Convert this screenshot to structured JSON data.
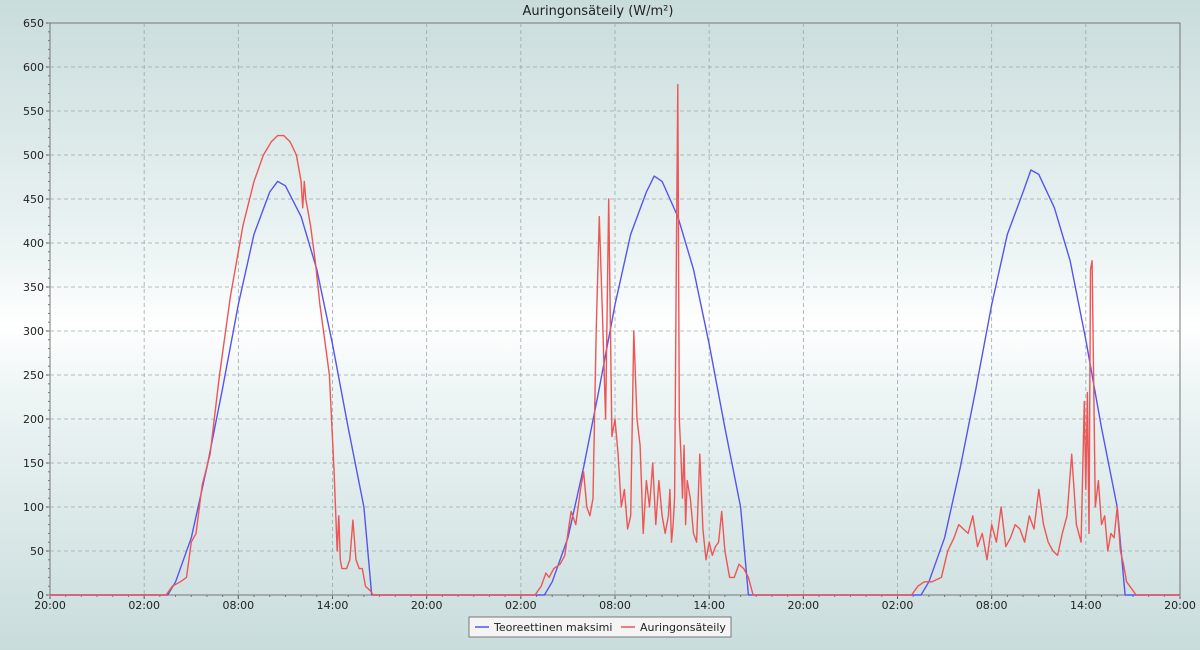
{
  "chart_data": {
    "type": "line",
    "title": "Auringonsäteily (W/m²)",
    "ylim": [
      0,
      650
    ],
    "y_ticks": [
      0,
      50,
      100,
      150,
      200,
      250,
      300,
      350,
      400,
      450,
      500,
      550,
      600,
      650
    ],
    "x_range_hours": [
      0,
      72
    ],
    "x_ticks": [
      {
        "h": 0,
        "label": "20:00"
      },
      {
        "h": 6,
        "label": "02:00"
      },
      {
        "h": 12,
        "label": "08:00"
      },
      {
        "h": 18,
        "label": "14:00"
      },
      {
        "h": 24,
        "label": "20:00"
      },
      {
        "h": 30,
        "label": "02:00"
      },
      {
        "h": 36,
        "label": "08:00"
      },
      {
        "h": 42,
        "label": "14:00"
      },
      {
        "h": 48,
        "label": "20:00"
      },
      {
        "h": 54,
        "label": "02:00"
      },
      {
        "h": 60,
        "label": "08:00"
      },
      {
        "h": 66,
        "label": "14:00"
      },
      {
        "h": 72,
        "label": "20:00"
      }
    ],
    "grid": true,
    "legend_position": "bottom-center",
    "series": [
      {
        "name": "Teoreettinen maksimi",
        "color": "#5555ee",
        "x": [
          0,
          7.5,
          8,
          9,
          10,
          11,
          12,
          13,
          14,
          14.5,
          15,
          16,
          17,
          18,
          19,
          20,
          20.5,
          31.5,
          32,
          33,
          34,
          35,
          36,
          37,
          38,
          38.5,
          39,
          40,
          41,
          42,
          43,
          44,
          44.5,
          55.5,
          56,
          57,
          58,
          59,
          60,
          61,
          62,
          62.5,
          63,
          64,
          65,
          66,
          67,
          68,
          68.5,
          72
        ],
        "y": [
          0,
          0,
          15,
          65,
          145,
          235,
          330,
          410,
          458,
          470,
          465,
          430,
          370,
          285,
          190,
          100,
          0,
          0,
          15,
          65,
          145,
          235,
          330,
          410,
          458,
          476,
          470,
          430,
          370,
          285,
          190,
          100,
          0,
          0,
          15,
          65,
          145,
          235,
          330,
          410,
          458,
          483,
          478,
          440,
          380,
          290,
          190,
          100,
          0,
          0
        ]
      },
      {
        "name": "Auringonsäteily",
        "color": "#ee5555",
        "x": [
          0,
          7.4,
          7.8,
          8.3,
          8.7,
          9.0,
          9.3,
          9.7,
          10.2,
          10.8,
          11.5,
          12.3,
          13.0,
          13.6,
          14.1,
          14.5,
          14.9,
          15.3,
          15.7,
          16.0,
          16.1,
          16.2,
          16.3,
          16.6,
          16.9,
          17.2,
          17.5,
          17.8,
          18.1,
          18.3,
          18.4,
          18.5,
          18.6,
          18.7,
          18.9,
          19.1,
          19.3,
          19.5,
          19.7,
          19.9,
          20.1,
          20.4,
          20.6,
          20.8,
          21.0,
          30.9,
          31.3,
          31.6,
          31.8,
          32.1,
          32.5,
          32.8,
          33.0,
          33.2,
          33.5,
          33.8,
          34.0,
          34.2,
          34.4,
          34.6,
          34.8,
          35.0,
          35.2,
          35.4,
          35.6,
          35.8,
          36.0,
          36.2,
          36.4,
          36.6,
          36.8,
          37.0,
          37.2,
          37.4,
          37.6,
          37.8,
          38.0,
          38.2,
          38.4,
          38.6,
          38.8,
          39.0,
          39.2,
          39.4,
          39.5,
          39.6,
          39.7,
          39.8,
          39.9,
          40.0,
          40.1,
          40.2,
          40.3,
          40.4,
          40.5,
          40.6,
          40.8,
          41.0,
          41.2,
          41.4,
          41.6,
          41.8,
          42.0,
          42.2,
          42.4,
          42.6,
          42.8,
          43.0,
          43.3,
          43.6,
          43.9,
          44.2,
          44.5,
          44.8,
          54.9,
          55.3,
          55.7,
          56.2,
          56.8,
          57.2,
          57.6,
          57.9,
          58.2,
          58.5,
          58.8,
          59.1,
          59.4,
          59.7,
          60.0,
          60.3,
          60.6,
          60.9,
          61.2,
          61.5,
          61.8,
          62.1,
          62.4,
          62.7,
          63.0,
          63.3,
          63.6,
          63.9,
          64.2,
          64.5,
          64.8,
          65.1,
          65.4,
          65.7,
          65.9,
          66.0,
          66.1,
          66.2,
          66.3,
          66.4,
          66.6,
          66.8,
          67.0,
          67.2,
          67.4,
          67.6,
          67.8,
          68.0,
          68.2,
          68.4,
          68.6,
          68.8,
          69.2,
          72
        ],
        "y": [
          0,
          0,
          10,
          15,
          20,
          60,
          70,
          125,
          160,
          250,
          340,
          420,
          470,
          500,
          515,
          522,
          522,
          515,
          500,
          470,
          440,
          470,
          450,
          420,
          380,
          330,
          290,
          250,
          140,
          50,
          90,
          40,
          30,
          30,
          30,
          40,
          85,
          40,
          30,
          30,
          10,
          5,
          0,
          0,
          0,
          0,
          10,
          25,
          20,
          30,
          35,
          45,
          70,
          95,
          80,
          120,
          140,
          100,
          90,
          110,
          300,
          430,
          320,
          200,
          450,
          180,
          200,
          160,
          100,
          120,
          75,
          90,
          300,
          200,
          170,
          70,
          130,
          100,
          150,
          80,
          130,
          90,
          70,
          90,
          120,
          60,
          80,
          110,
          360,
          580,
          200,
          160,
          110,
          170,
          80,
          130,
          110,
          70,
          60,
          160,
          75,
          40,
          60,
          45,
          55,
          60,
          95,
          50,
          20,
          20,
          35,
          30,
          20,
          0,
          0,
          10,
          15,
          15,
          20,
          50,
          65,
          80,
          75,
          70,
          90,
          55,
          70,
          40,
          80,
          60,
          100,
          55,
          65,
          80,
          75,
          60,
          90,
          75,
          120,
          80,
          60,
          50,
          45,
          70,
          90,
          160,
          80,
          60,
          220,
          120,
          230,
          70,
          370,
          380,
          100,
          130,
          80,
          90,
          50,
          70,
          65,
          100,
          50,
          35,
          15,
          10,
          0,
          0
        ]
      }
    ]
  }
}
